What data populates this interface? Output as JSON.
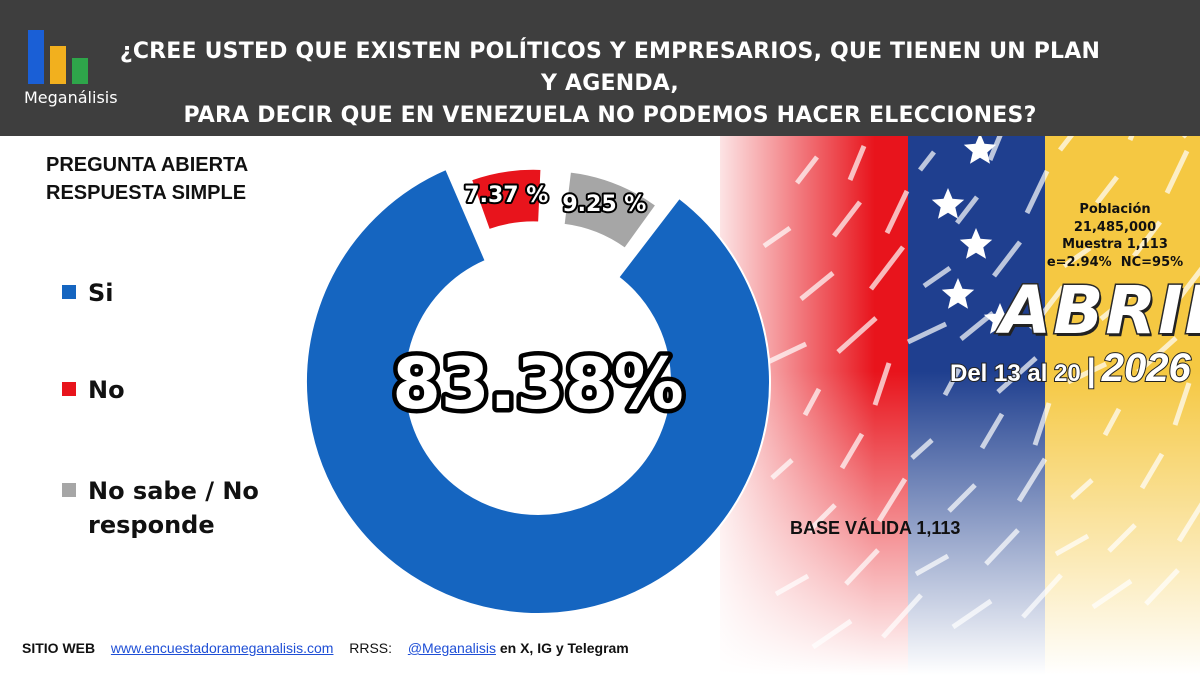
{
  "header": {
    "brand": "Meganálisis",
    "question_line1": "¿CREE USTED QUE EXISTEN POLÍTICOS Y EMPRESARIOS, QUE TIENEN UN PLAN Y AGENDA,",
    "question_line2": "PARA DECIR QUE EN VENEZUELA NO PODEMOS HACER ELECCIONES?",
    "logo_colors": [
      "#1a5fd6",
      "#f2b01e",
      "#2ea64a"
    ]
  },
  "question_type": {
    "line1": "PREGUNTA  ABIERTA",
    "line2": "RESPUESTA SIMPLE"
  },
  "chart_data": {
    "type": "pie",
    "variant": "donut",
    "categories": [
      "Si",
      "No",
      "No sabe / No responde"
    ],
    "values": [
      83.38,
      7.37,
      9.25
    ],
    "labels": [
      "83.38%",
      "7.37 %",
      "9.25 %"
    ],
    "colors": [
      "#1565c0",
      "#e8141c",
      "#a6a6a6"
    ],
    "legend_position": "left"
  },
  "study": {
    "poblacion_label": "Población",
    "poblacion_value": "21,485,000",
    "muestra": "Muestra 1,113",
    "error_nc": "e=2.94%  NC=95%",
    "month": "ABRIL",
    "date_range_from": "Del 13 al 20",
    "date_separator": "|",
    "year": "2026",
    "base": "BASE VÁLIDA 1,113"
  },
  "footer": {
    "web_label": "SITIO WEB",
    "web_link": "www.encuestadorameganalisis.com",
    "rrss_label": "RRSS:",
    "handle": "@Meganalisis",
    "networks": "en X, IG y Telegram"
  },
  "flag_colors": [
    "#e8141c",
    "#1f3f8f",
    "#f5c842"
  ]
}
